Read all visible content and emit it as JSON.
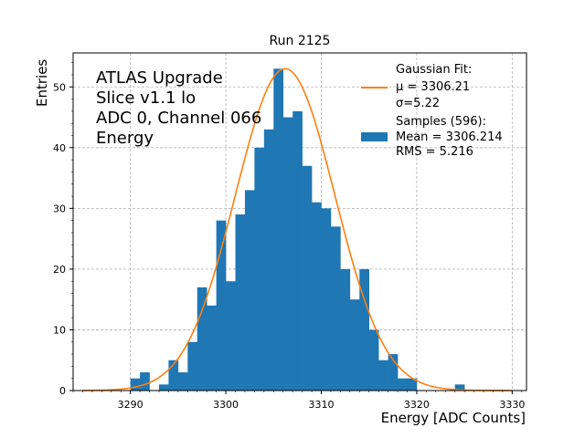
{
  "chart_data": {
    "type": "bar",
    "title": "Run 2125",
    "xlabel": "Energy [ADC Counts]",
    "ylabel": "Entries",
    "xlim": [
      3284,
      3331.5
    ],
    "ylim": [
      0,
      55.6
    ],
    "grid": true,
    "x_ticks": [
      3290,
      3300,
      3310,
      3320,
      3330
    ],
    "y_ticks": [
      0,
      10,
      20,
      30,
      40,
      50
    ],
    "annotation_lines": [
      "ATLAS Upgrade",
      "Slice v1.1 lo",
      "ADC 0, Channel 066",
      "Energy"
    ],
    "legend_position": "top-right",
    "legend": {
      "fit_title": "Gaussian Fit:",
      "fit_mu": " μ = 3306.21",
      "fit_sigma": " σ=5.22",
      "samples_title": "Samples (596):",
      "samples_mean": " Mean = 3306.214",
      "samples_rms": " RMS = 5.216"
    },
    "histogram": {
      "name": "Samples",
      "color": "#1f77b4",
      "bin_width": 1,
      "bins": [
        {
          "x": 3290,
          "count": 2
        },
        {
          "x": 3291,
          "count": 3
        },
        {
          "x": 3293,
          "count": 1
        },
        {
          "x": 3294,
          "count": 5
        },
        {
          "x": 3295,
          "count": 3
        },
        {
          "x": 3296,
          "count": 8
        },
        {
          "x": 3297,
          "count": 17
        },
        {
          "x": 3298,
          "count": 14
        },
        {
          "x": 3299,
          "count": 28
        },
        {
          "x": 3300,
          "count": 18
        },
        {
          "x": 3301,
          "count": 29
        },
        {
          "x": 3302,
          "count": 33
        },
        {
          "x": 3303,
          "count": 40
        },
        {
          "x": 3304,
          "count": 43
        },
        {
          "x": 3305,
          "count": 53
        },
        {
          "x": 3306,
          "count": 45
        },
        {
          "x": 3307,
          "count": 46
        },
        {
          "x": 3308,
          "count": 37
        },
        {
          "x": 3309,
          "count": 31
        },
        {
          "x": 3310,
          "count": 30
        },
        {
          "x": 3311,
          "count": 27
        },
        {
          "x": 3312,
          "count": 20
        },
        {
          "x": 3313,
          "count": 15
        },
        {
          "x": 3314,
          "count": 20
        },
        {
          "x": 3315,
          "count": 10
        },
        {
          "x": 3316,
          "count": 5
        },
        {
          "x": 3317,
          "count": 6
        },
        {
          "x": 3318,
          "count": 2
        },
        {
          "x": 3319,
          "count": 2
        },
        {
          "x": 3324,
          "count": 1
        }
      ]
    },
    "fit": {
      "name": "Gaussian Fit",
      "color": "#ff7f0e",
      "mu": 3306.21,
      "sigma": 5.22,
      "amplitude": 53,
      "x_range": [
        3285,
        3330
      ]
    }
  }
}
